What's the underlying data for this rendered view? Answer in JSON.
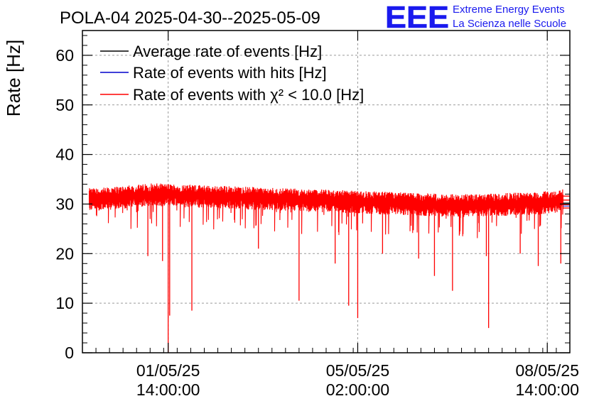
{
  "chart_data": {
    "type": "line",
    "title": "POLA-04 2025-04-30--2025-05-09",
    "ylabel": "Rate [Hz]",
    "xlabel": "",
    "ylim": [
      0,
      65
    ],
    "y_ticks": [
      0,
      10,
      20,
      30,
      40,
      50,
      60
    ],
    "x_range": [
      "2025-04-30 00:00:00",
      "2025-05-09 00:00:00"
    ],
    "x_ticks": [
      {
        "date": "01/05/25",
        "time": "14:00:00",
        "value": "2025-05-01 14:00:00"
      },
      {
        "date": "05/05/25",
        "time": "02:00:00",
        "value": "2025-05-05 02:00:00"
      },
      {
        "date": "08/05/25",
        "time": "14:00:00",
        "value": "2025-05-08 14:00:00"
      }
    ],
    "grid": true,
    "legend_position": "top-left",
    "series": [
      {
        "name": "Average rate of events [Hz]",
        "color": "#000000",
        "mean": 30.0
      },
      {
        "name": "Rate of events with hits [Hz]",
        "color": "#0000cc"
      },
      {
        "name": "Rate of events with χ² < 10.0 [Hz]",
        "color": "#ff0000"
      }
    ],
    "data_points": [
      {
        "x": "2025-04-30 07:00:00",
        "y": 31.0
      },
      {
        "x": "2025-04-30 19:00:00",
        "y": 31.5
      },
      {
        "x": "2025-05-01 07:00:00",
        "y": 32.0
      },
      {
        "x": "2025-05-01 19:00:00",
        "y": 31.8
      },
      {
        "x": "2025-05-02 07:00:00",
        "y": 31.6
      },
      {
        "x": "2025-05-02 19:00:00",
        "y": 31.4
      },
      {
        "x": "2025-05-03 07:00:00",
        "y": 31.2
      },
      {
        "x": "2025-05-03 19:00:00",
        "y": 31.0
      },
      {
        "x": "2025-05-04 07:00:00",
        "y": 30.8
      },
      {
        "x": "2025-05-04 19:00:00",
        "y": 30.6
      },
      {
        "x": "2025-05-05 07:00:00",
        "y": 30.4
      },
      {
        "x": "2025-05-05 19:00:00",
        "y": 30.2
      },
      {
        "x": "2025-05-06 07:00:00",
        "y": 30.0
      },
      {
        "x": "2025-05-06 19:00:00",
        "y": 29.8
      },
      {
        "x": "2025-05-07 07:00:00",
        "y": 29.8
      },
      {
        "x": "2025-05-07 19:00:00",
        "y": 30.0
      },
      {
        "x": "2025-05-08 07:00:00",
        "y": 30.2
      },
      {
        "x": "2025-05-08 19:00:00",
        "y": 30.6
      },
      {
        "x": "2025-05-09 00:00:00",
        "y": 31.0
      }
    ],
    "dips": [
      {
        "x": "2025-05-01 05:00:00",
        "y": 19.5
      },
      {
        "x": "2025-05-01 11:30:00",
        "y": 18.5
      },
      {
        "x": "2025-05-01 14:00:00",
        "y": 0.0
      },
      {
        "x": "2025-05-01 14:40:00",
        "y": 7.5
      },
      {
        "x": "2025-05-02 00:30:00",
        "y": 8.5
      },
      {
        "x": "2025-05-03 06:00:00",
        "y": 21.0
      },
      {
        "x": "2025-05-04 00:00:00",
        "y": 10.5
      },
      {
        "x": "2025-05-04 16:00:00",
        "y": 18.0
      },
      {
        "x": "2025-05-04 22:00:00",
        "y": 9.5
      },
      {
        "x": "2025-05-05 02:00:00",
        "y": 7.0
      },
      {
        "x": "2025-05-05 13:00:00",
        "y": 20.0
      },
      {
        "x": "2025-05-06 05:00:00",
        "y": 19.0
      },
      {
        "x": "2025-05-06 12:00:00",
        "y": 15.5
      },
      {
        "x": "2025-05-06 20:00:00",
        "y": 12.5
      },
      {
        "x": "2025-05-07 11:00:00",
        "y": 19.5
      },
      {
        "x": "2025-05-07 12:00:00",
        "y": 5.0
      },
      {
        "x": "2025-05-08 02:00:00",
        "y": 20.0
      },
      {
        "x": "2025-05-08 10:00:00",
        "y": 17.5
      },
      {
        "x": "2025-05-08 20:00:00",
        "y": 18.0
      }
    ],
    "band": {
      "x_start": "2025-04-30 03:00:00",
      "x_end": "2025-05-08 21:00:00"
    }
  },
  "branding": {
    "logo_text": "EEE",
    "line1": "Extreme Energy Events",
    "line2": "La Scienza nelle Scuole",
    "color": "#1a1aee"
  }
}
